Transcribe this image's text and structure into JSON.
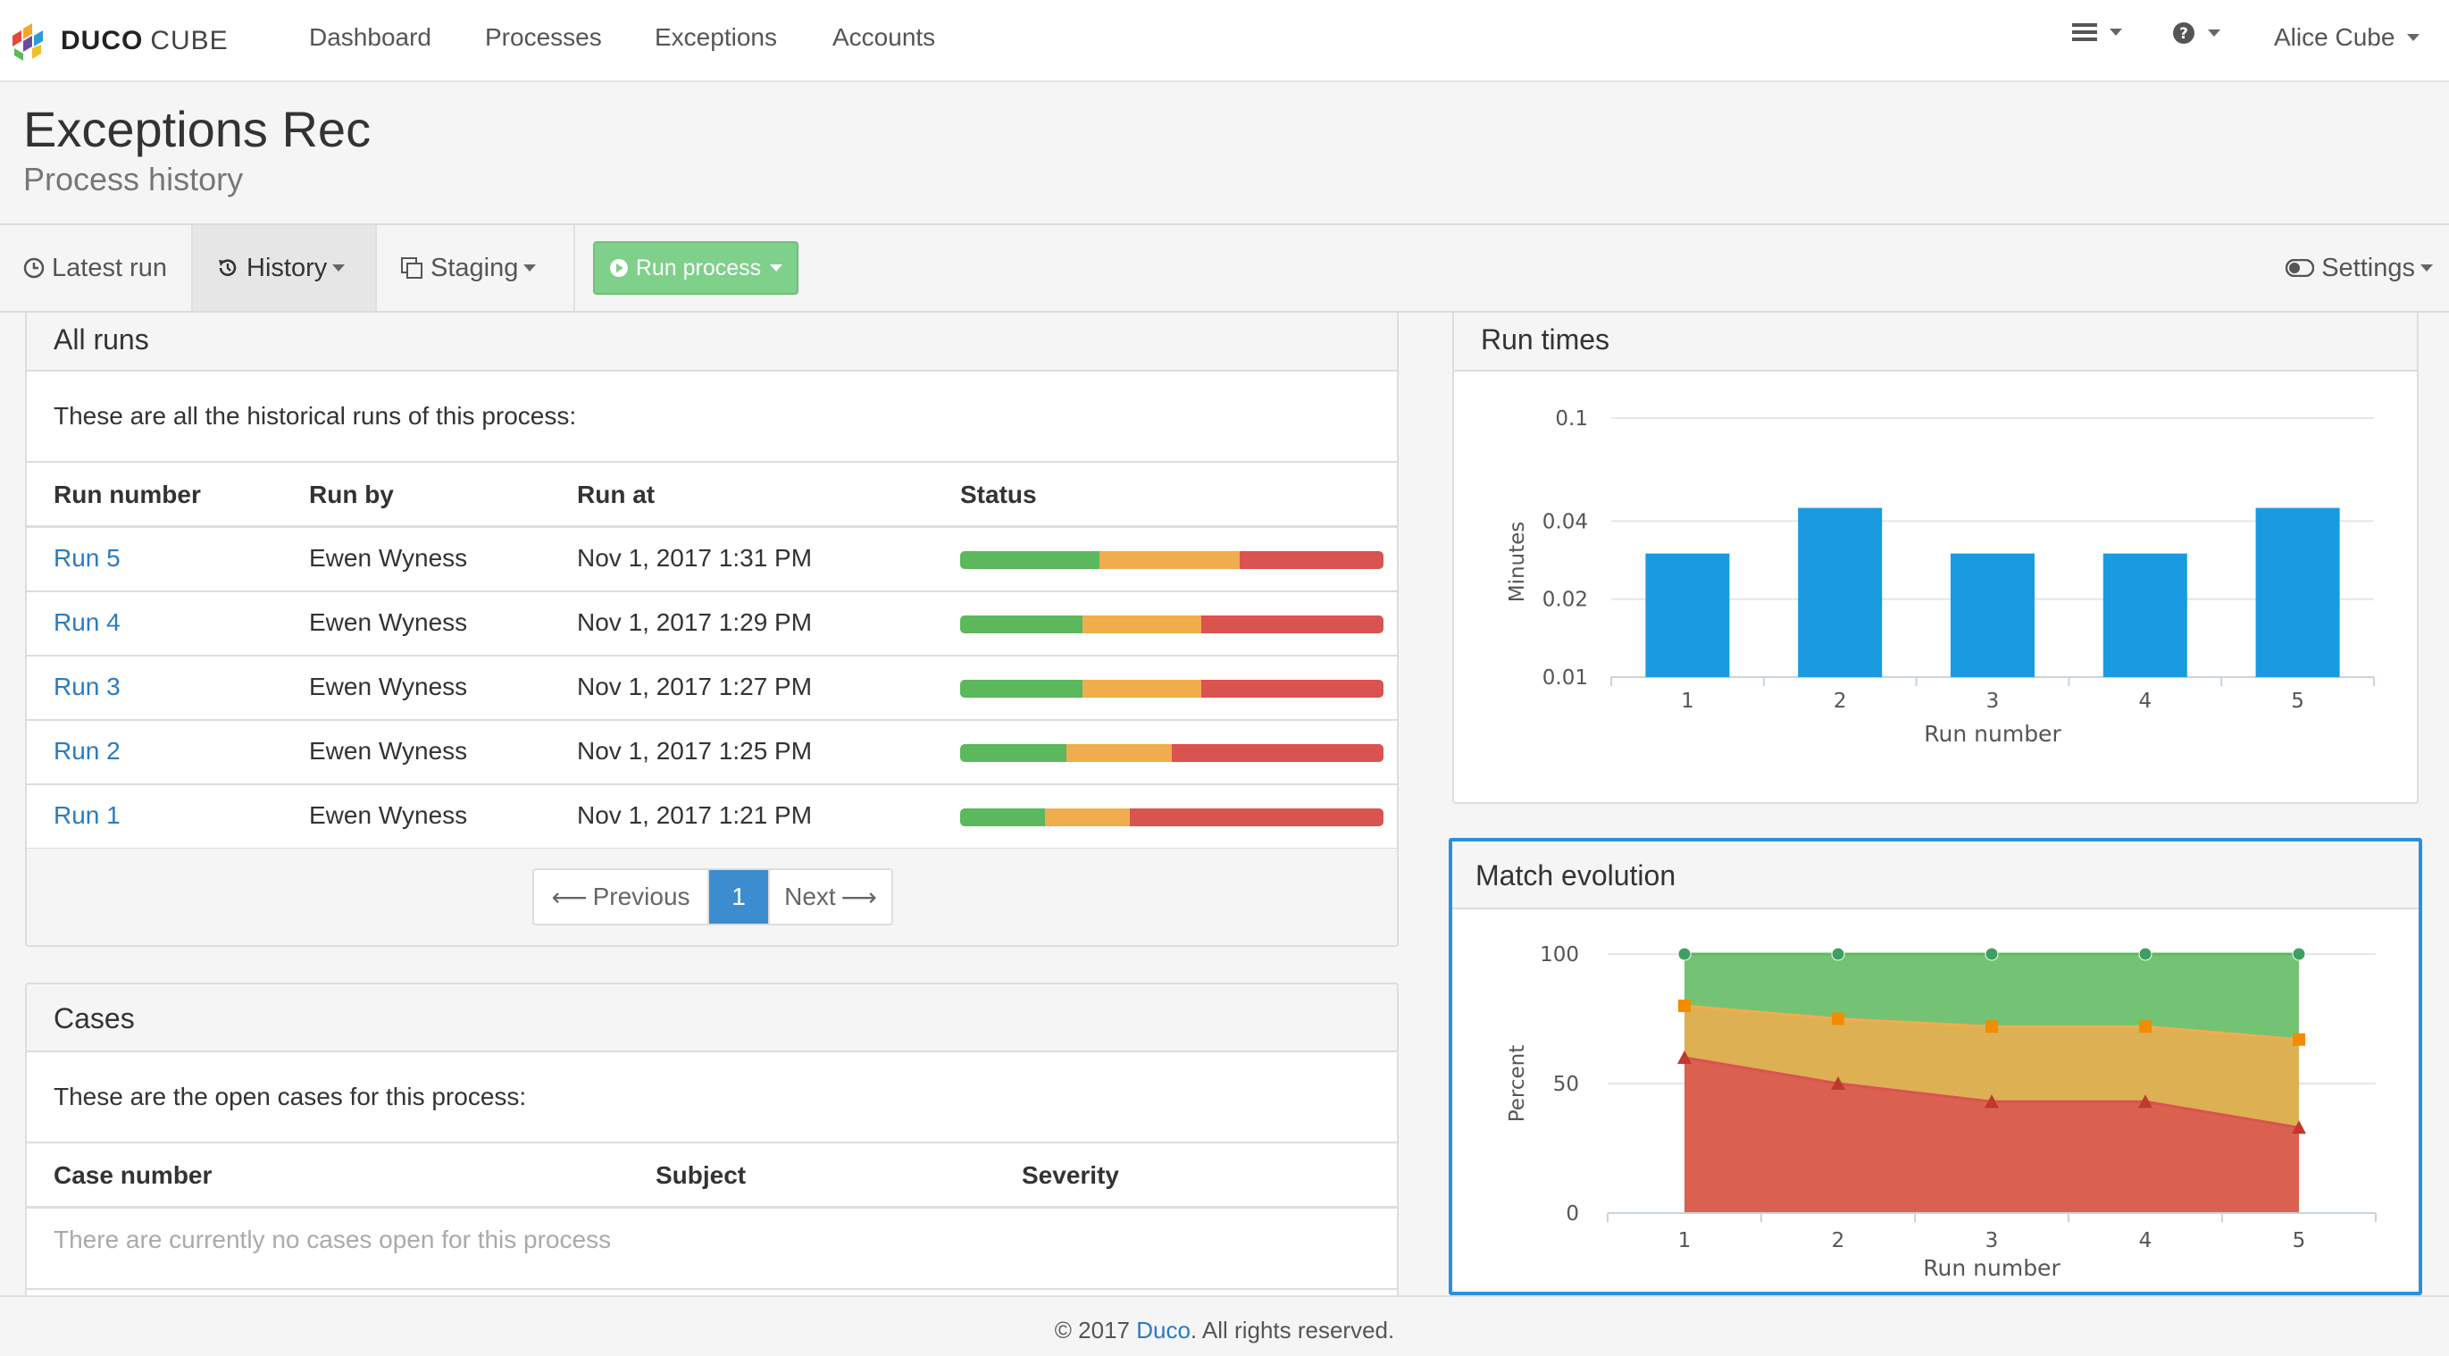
{
  "navbar": {
    "brand_bold": "DUCO",
    "brand_light": "CUBE",
    "links": [
      "Dashboard",
      "Processes",
      "Exceptions",
      "Accounts"
    ],
    "user": "Alice Cube"
  },
  "header": {
    "title": "Exceptions Rec",
    "subtitle": "Process history"
  },
  "toolbar": {
    "latest_run": "Latest run",
    "history": "History",
    "staging": "Staging",
    "run_process": "Run process",
    "settings": "Settings"
  },
  "all_runs": {
    "title": "All runs",
    "intro": "These are all the historical runs of this process:",
    "columns": [
      "Run number",
      "Run by",
      "Run at",
      "Status"
    ],
    "rows": [
      {
        "run": "Run 5",
        "by": "Ewen Wyness",
        "at": "Nov 1, 2017 1:31 PM",
        "status": [
          0.33,
          0.33,
          0.34
        ]
      },
      {
        "run": "Run 4",
        "by": "Ewen Wyness",
        "at": "Nov 1, 2017 1:29 PM",
        "status": [
          0.29,
          0.28,
          0.43
        ]
      },
      {
        "run": "Run 3",
        "by": "Ewen Wyness",
        "at": "Nov 1, 2017 1:27 PM",
        "status": [
          0.29,
          0.28,
          0.43
        ]
      },
      {
        "run": "Run 2",
        "by": "Ewen Wyness",
        "at": "Nov 1, 2017 1:25 PM",
        "status": [
          0.25,
          0.25,
          0.5
        ]
      },
      {
        "run": "Run 1",
        "by": "Ewen Wyness",
        "at": "Nov 1, 2017 1:21 PM",
        "status": [
          0.2,
          0.2,
          0.6
        ]
      }
    ],
    "pagination": {
      "previous": "Previous",
      "current": "1",
      "next": "Next"
    }
  },
  "cases": {
    "title": "Cases",
    "intro": "These are the open cases for this process:",
    "columns": [
      "Case number",
      "Subject",
      "Severity"
    ],
    "empty": "There are currently no cases open for this process"
  },
  "run_times": {
    "title": "Run times"
  },
  "match_evolution": {
    "title": "Match evolution"
  },
  "chart_data": [
    {
      "type": "bar",
      "title": "Run times",
      "xlabel": "Run number",
      "ylabel": "Minutes",
      "yscale": "log",
      "yticks": [
        "0.01",
        "0.02",
        "0.04",
        "0.1"
      ],
      "categories": [
        "1",
        "2",
        "3",
        "4",
        "5"
      ],
      "values": [
        0.03,
        0.045,
        0.03,
        0.03,
        0.045
      ],
      "color": "#1a9ae0",
      "grid": true
    },
    {
      "type": "area",
      "title": "Match evolution",
      "xlabel": "Run number",
      "ylabel": "Percent",
      "ylim": [
        0,
        100
      ],
      "yticks": [
        "0",
        "50",
        "100"
      ],
      "x": [
        "1",
        "2",
        "3",
        "4",
        "5"
      ],
      "series": [
        {
          "values": [
            100,
            100,
            100,
            100,
            100
          ],
          "color": "#5cb85c",
          "marker": "circle"
        },
        {
          "values": [
            80,
            75,
            72,
            72,
            67
          ],
          "color": "#f0ad4e",
          "marker": "square"
        },
        {
          "values": [
            60,
            50,
            43,
            43,
            33
          ],
          "color": "#d9534f",
          "marker": "triangle"
        }
      ],
      "grid": true
    }
  ],
  "footer": {
    "prefix": "© 2017 ",
    "link": "Duco",
    "suffix": ". All rights reserved."
  }
}
